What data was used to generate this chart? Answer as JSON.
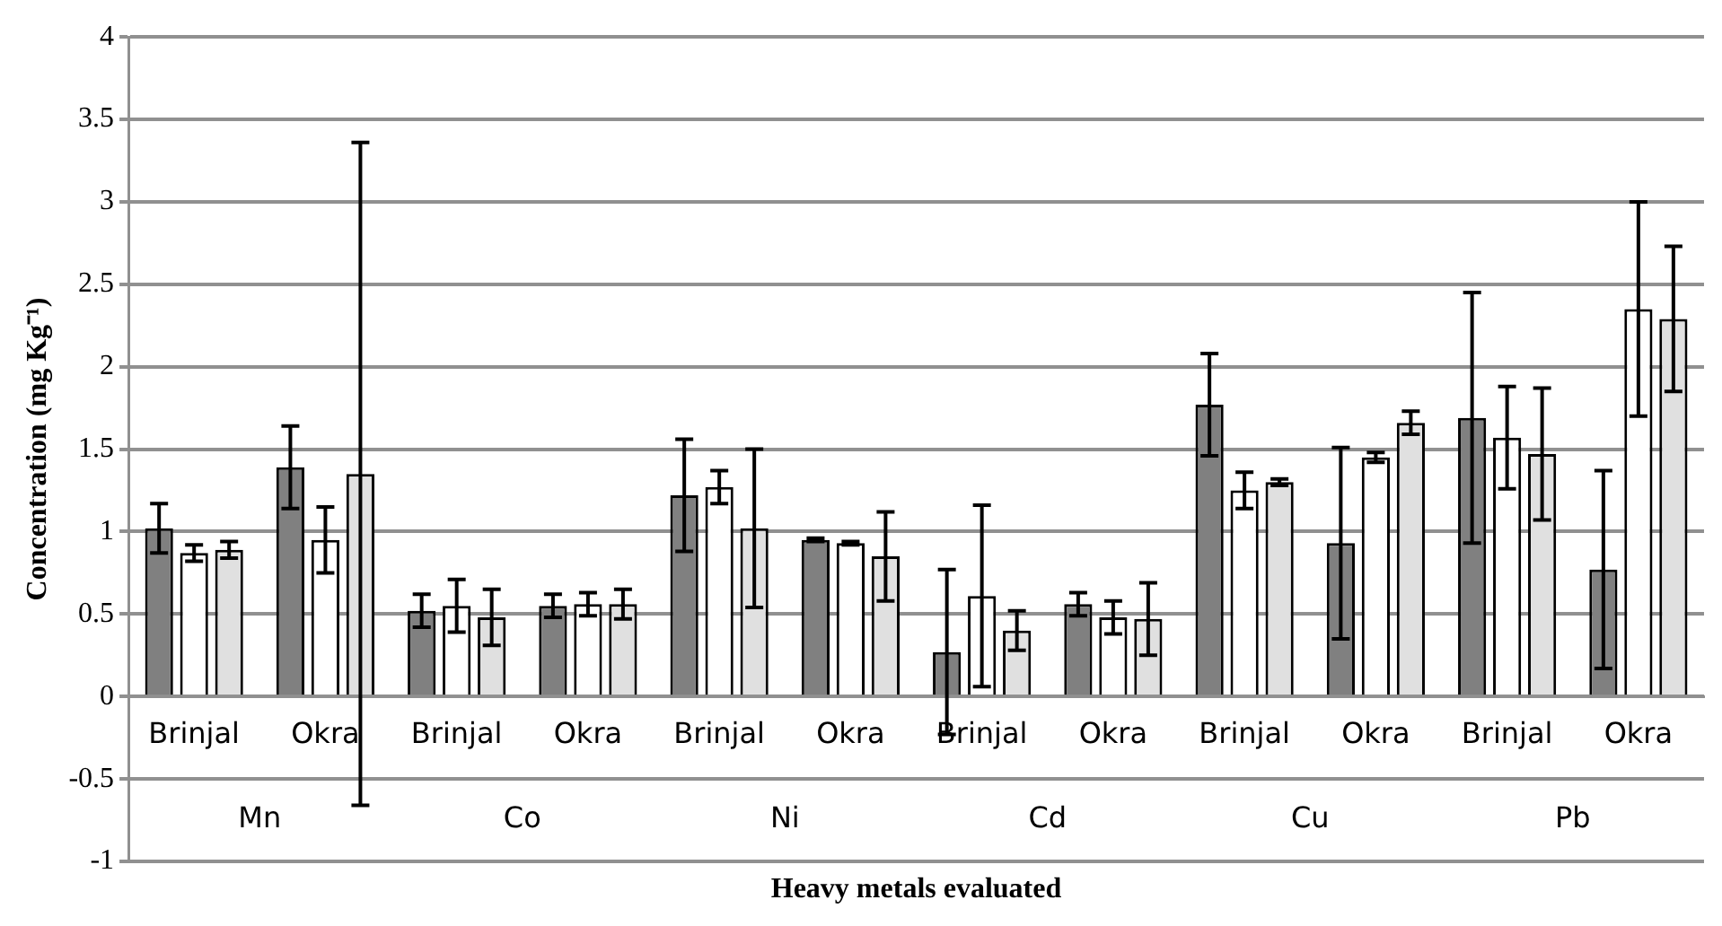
{
  "chart_data": {
    "type": "bar",
    "xlabel": "Heavy metals evaluated",
    "ylabel": "Concentration (mg Kg⁻¹)",
    "categories": [
      "Brinjal",
      "Okra",
      "Brinjal",
      "Okra",
      "Brinjal",
      "Okra",
      "Brinjal",
      "Okra",
      "Brinjal",
      "Okra",
      "Brinjal",
      "Okra"
    ],
    "annotations": [
      "Mn",
      "Co",
      "Ni",
      "Cd",
      "Cu",
      "Pb"
    ],
    "series": [
      {
        "color": "#808080",
        "values": [
          1.02,
          1.39,
          0.52,
          0.55,
          1.22,
          0.95,
          0.27,
          0.56,
          1.77,
          0.93,
          1.69,
          0.77
        ],
        "errors": [
          0.15,
          0.25,
          0.1,
          0.07,
          0.34,
          0.01,
          0.5,
          0.07,
          0.31,
          0.58,
          0.76,
          0.6
        ]
      },
      {
        "color": "#ffffff",
        "values": [
          0.87,
          0.95,
          0.55,
          0.56,
          1.27,
          0.93,
          0.61,
          0.48,
          1.25,
          1.45,
          1.57,
          2.35
        ],
        "errors": [
          0.05,
          0.2,
          0.16,
          0.07,
          0.1,
          0.01,
          0.55,
          0.1,
          0.11,
          0.03,
          0.31,
          0.65
        ]
      },
      {
        "color": "#e0e0e0",
        "values": [
          0.89,
          1.35,
          0.48,
          0.56,
          1.02,
          0.85,
          0.4,
          0.47,
          1.3,
          1.66,
          1.47,
          2.29
        ],
        "errors": [
          0.05,
          2.01,
          0.17,
          0.09,
          0.48,
          0.27,
          0.12,
          0.22,
          0.02,
          0.07,
          0.4,
          0.44
        ]
      }
    ],
    "ylim": [
      -1,
      4
    ],
    "yticks": [
      -1,
      -0.5,
      0,
      0.5,
      1,
      1.5,
      2,
      2.5,
      3,
      3.5,
      4
    ],
    "grid": "y",
    "legend": false
  }
}
